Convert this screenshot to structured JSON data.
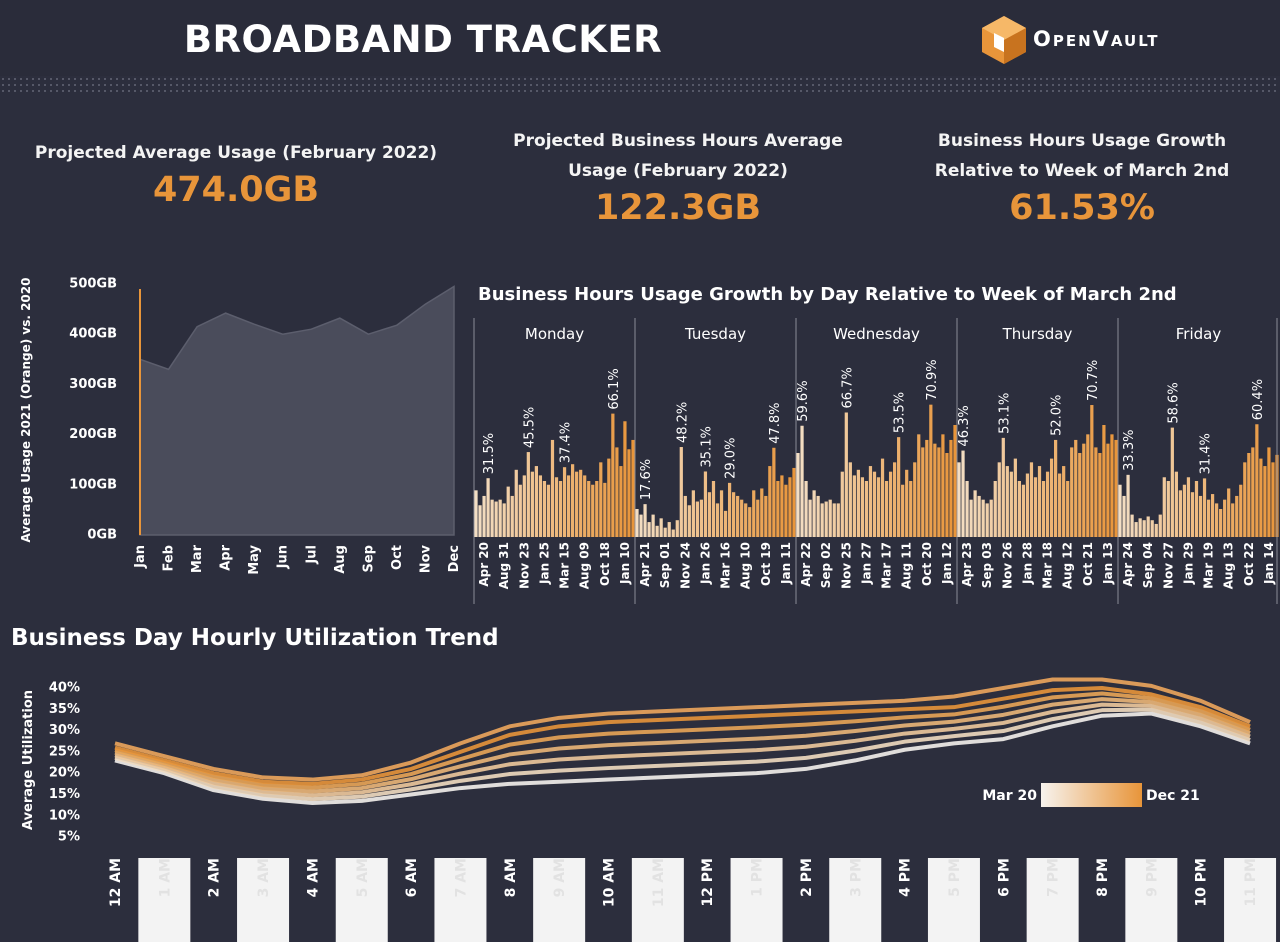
{
  "header": {
    "title": "BROADBAND TRACKER",
    "logo": "OpenVault"
  },
  "kpis": [
    {
      "label": "Projected Average Usage (February 2022)",
      "value": "474.0GB"
    },
    {
      "label": "Projected Business Hours Average Usage (February 2022)",
      "value": "122.3GB"
    },
    {
      "label": "Business Hours Usage Growth Relative to Week of March 2nd",
      "value": "61.53%"
    }
  ],
  "chart_data": [
    {
      "type": "area",
      "y_label": "Average Usage 2021 (Orange) vs. 2020",
      "categories": [
        "Jan",
        "Feb",
        "Mar",
        "Apr",
        "May",
        "Jun",
        "Jul",
        "Aug",
        "Sep",
        "Oct",
        "Nov",
        "Dec"
      ],
      "series": [
        {
          "color": "#4a4c5b",
          "values": [
            350,
            330,
            415,
            442,
            420,
            400,
            410,
            432,
            400,
            418,
            460,
            495
          ]
        },
        {
          "color": "#e8953a",
          "values": [
            490,
            null,
            null,
            null,
            null,
            null,
            null,
            null,
            null,
            null,
            null,
            null
          ]
        }
      ],
      "ylim": [
        0,
        500
      ],
      "yticks": [
        {
          "value": 0,
          "label": "0GB"
        },
        {
          "value": 100,
          "label": "100GB"
        },
        {
          "value": 200,
          "label": "200GB"
        },
        {
          "value": 300,
          "label": "300GB"
        },
        {
          "value": 400,
          "label": "400GB"
        },
        {
          "value": 500,
          "label": "500GB"
        }
      ]
    },
    {
      "type": "bar",
      "title": "Business Hours Usage Growth by Day Relative to Week of March 2nd",
      "ylim": [
        0,
        75
      ],
      "color_range": [
        "#f3dec4",
        "#e8953a"
      ],
      "panels": [
        {
          "name": "Monday",
          "categories": [
            null,
            null,
            "Apr 20",
            null,
            null,
            null,
            null,
            "Aug 31",
            null,
            null,
            null,
            null,
            "Nov 23",
            null,
            null,
            null,
            null,
            "Jan 25",
            null,
            null,
            null,
            null,
            "Mar 15",
            null,
            null,
            null,
            null,
            "Aug 09",
            null,
            null,
            null,
            null,
            "Oct 18",
            null,
            null,
            null,
            null,
            "Jan 10",
            null,
            null
          ],
          "values": [
            25,
            17,
            22,
            31.5,
            20,
            19,
            20,
            18,
            27,
            22,
            36,
            28,
            33,
            45.5,
            35,
            38,
            33,
            30,
            28,
            52,
            32,
            30,
            37.4,
            33,
            39,
            35,
            36,
            33,
            30,
            28,
            30,
            40,
            29,
            42,
            66.1,
            48,
            38,
            62,
            47,
            52
          ],
          "value_labels": [
            null,
            null,
            null,
            "31.5%",
            null,
            null,
            null,
            null,
            null,
            null,
            null,
            null,
            null,
            "45.5%",
            null,
            null,
            null,
            null,
            null,
            null,
            null,
            null,
            "37.4%",
            null,
            null,
            null,
            null,
            null,
            null,
            null,
            null,
            null,
            null,
            null,
            "66.1%",
            null,
            null,
            null,
            null,
            null
          ]
        },
        {
          "name": "Tuesday",
          "categories": [
            null,
            null,
            "Apr 21",
            null,
            null,
            null,
            null,
            "Sep 01",
            null,
            null,
            null,
            null,
            "Nov 24",
            null,
            null,
            null,
            null,
            "Jan 26",
            null,
            null,
            null,
            null,
            "Mar 16",
            null,
            null,
            null,
            null,
            "Aug 10",
            null,
            null,
            null,
            null,
            "Oct 19",
            null,
            null,
            null,
            null,
            "Jan 11",
            null,
            null
          ],
          "values": [
            15,
            12,
            17.6,
            8,
            12,
            6,
            10,
            5,
            8,
            4,
            9,
            48.2,
            22,
            17,
            25,
            19,
            20,
            35.1,
            24,
            30,
            18,
            25,
            14,
            29.0,
            24,
            22,
            20,
            18,
            16,
            25,
            20,
            26,
            22,
            38,
            47.8,
            30,
            33,
            28,
            32,
            37
          ],
          "value_labels": [
            null,
            null,
            "17.6%",
            null,
            null,
            null,
            null,
            null,
            null,
            null,
            null,
            "48.2%",
            null,
            null,
            null,
            null,
            null,
            "35.1%",
            null,
            null,
            null,
            null,
            null,
            "29.0%",
            null,
            null,
            null,
            null,
            null,
            null,
            null,
            null,
            null,
            null,
            "47.8%",
            null,
            null,
            null,
            null,
            null
          ]
        },
        {
          "name": "Wednesday",
          "categories": [
            null,
            null,
            "Apr 22",
            null,
            null,
            null,
            null,
            "Sep 02",
            null,
            null,
            null,
            null,
            "Nov 25",
            null,
            null,
            null,
            null,
            "Jan 27",
            null,
            null,
            null,
            null,
            "Mar 17",
            null,
            null,
            null,
            null,
            "Aug 11",
            null,
            null,
            null,
            null,
            "Oct 20",
            null,
            null,
            null,
            null,
            "Jan 12",
            null,
            null
          ],
          "values": [
            45,
            59.6,
            30,
            20,
            25,
            22,
            18,
            19,
            20,
            18,
            18,
            35,
            66.7,
            40,
            33,
            36,
            32,
            30,
            38,
            35,
            32,
            42,
            30,
            35,
            40,
            53.5,
            28,
            36,
            30,
            40,
            55,
            48,
            52,
            70.9,
            50,
            48,
            55,
            45,
            52,
            60
          ],
          "value_labels": [
            null,
            "59.6%",
            null,
            null,
            null,
            null,
            null,
            null,
            null,
            null,
            null,
            null,
            "66.7%",
            null,
            null,
            null,
            null,
            null,
            null,
            null,
            null,
            null,
            null,
            null,
            null,
            "53.5%",
            null,
            null,
            null,
            null,
            null,
            null,
            null,
            "70.9%",
            null,
            null,
            null,
            null,
            null,
            null
          ]
        },
        {
          "name": "Thursday",
          "categories": [
            null,
            null,
            "Apr 23",
            null,
            null,
            null,
            null,
            "Sep 03",
            null,
            null,
            null,
            null,
            "Nov 26",
            null,
            null,
            null,
            null,
            "Jan 28",
            null,
            null,
            null,
            null,
            "Mar 18",
            null,
            null,
            null,
            null,
            "Aug 12",
            null,
            null,
            null,
            null,
            "Oct 21",
            null,
            null,
            null,
            null,
            "Jan 13",
            null,
            null
          ],
          "values": [
            40,
            46.3,
            30,
            20,
            25,
            22,
            20,
            18,
            20,
            30,
            40,
            53.1,
            38,
            35,
            42,
            30,
            28,
            34,
            40,
            32,
            38,
            30,
            35,
            42,
            52.0,
            34,
            38,
            30,
            48,
            52,
            45,
            50,
            55,
            70.7,
            48,
            45,
            60,
            50,
            55,
            52
          ],
          "value_labels": [
            null,
            "46.3%",
            null,
            null,
            null,
            null,
            null,
            null,
            null,
            null,
            null,
            "53.1%",
            null,
            null,
            null,
            null,
            null,
            null,
            null,
            null,
            null,
            null,
            null,
            null,
            "52.0%",
            null,
            null,
            null,
            null,
            null,
            null,
            null,
            null,
            "70.7%",
            null,
            null,
            null,
            null,
            null,
            null
          ]
        },
        {
          "name": "Friday",
          "categories": [
            null,
            null,
            "Apr 24",
            null,
            null,
            null,
            null,
            "Sep 04",
            null,
            null,
            null,
            null,
            "Nov 27",
            null,
            null,
            null,
            null,
            "Jan 29",
            null,
            null,
            null,
            null,
            "Mar 19",
            null,
            null,
            null,
            null,
            "Aug 13",
            null,
            null,
            null,
            null,
            "Oct 22",
            null,
            null,
            null,
            null,
            "Jan 14",
            null,
            null
          ],
          "values": [
            28,
            22,
            33.3,
            12,
            8,
            10,
            9,
            11,
            9,
            7,
            12,
            32,
            30,
            58.6,
            35,
            25,
            28,
            32,
            24,
            30,
            22,
            31.4,
            20,
            23,
            18,
            15,
            20,
            26,
            18,
            22,
            28,
            40,
            45,
            48,
            60.4,
            42,
            38,
            48,
            40,
            44
          ],
          "value_labels": [
            null,
            null,
            "33.3%",
            null,
            null,
            null,
            null,
            null,
            null,
            null,
            null,
            null,
            null,
            "58.6%",
            null,
            null,
            null,
            null,
            null,
            null,
            null,
            "31.4%",
            null,
            null,
            null,
            null,
            null,
            null,
            null,
            null,
            null,
            null,
            null,
            null,
            "60.4%",
            null,
            null,
            null,
            null,
            null
          ]
        }
      ]
    },
    {
      "type": "line",
      "title": "Business Day Hourly Utilization Trend",
      "y_label": "Average Utilization",
      "categories": [
        "12 AM",
        "1 AM",
        "2 AM",
        "3 AM",
        "4 AM",
        "5 AM",
        "6 AM",
        "7 AM",
        "8 AM",
        "9 AM",
        "10 AM",
        "11 AM",
        "12 PM",
        "1 PM",
        "2 PM",
        "3 PM",
        "4 PM",
        "5 PM",
        "6 PM",
        "7 PM",
        "8 PM",
        "9 PM",
        "10 PM",
        "11 PM"
      ],
      "ylim": [
        4,
        42
      ],
      "yticks": [
        {
          "value": 5,
          "label": "5%"
        },
        {
          "value": 10,
          "label": "10%"
        },
        {
          "value": 15,
          "label": "15%"
        },
        {
          "value": 20,
          "label": "20%"
        },
        {
          "value": 25,
          "label": "25%"
        },
        {
          "value": 30,
          "label": "30%"
        },
        {
          "value": 35,
          "label": "35%"
        },
        {
          "value": 40,
          "label": "40%"
        }
      ],
      "legend": {
        "from": "Mar 20",
        "to": "Dec 21",
        "colors": [
          "#f7f3ee",
          "#e8953a"
        ]
      },
      "series": [
        {
          "color": "#eda65c",
          "values": [
            27,
            24,
            21,
            19,
            18.5,
            19.5,
            22.5,
            27,
            31,
            33,
            34,
            34.5,
            35,
            35.5,
            36,
            36.5,
            37,
            38,
            40,
            42,
            42,
            40.5,
            37,
            32
          ]
        },
        {
          "color": "#e8953a",
          "values": [
            26,
            23,
            20,
            18,
            17.5,
            18.5,
            21,
            25,
            29,
            31,
            32,
            32.5,
            33,
            33.5,
            34,
            34.5,
            35,
            35.5,
            37.5,
            39.5,
            40,
            38.5,
            35.5,
            31
          ]
        },
        {
          "color": "#e9a557",
          "values": [
            25.4,
            22.4,
            19.2,
            17.2,
            16.6,
            17.5,
            19.8,
            23.3,
            26.7,
            28.4,
            29.3,
            29.8,
            30.3,
            30.8,
            31.4,
            32.2,
            33.1,
            33.8,
            35.6,
            37.8,
            38.7,
            37.6,
            34.6,
            30.2
          ]
        },
        {
          "color": "#ebb678",
          "values": [
            24.8,
            21.8,
            18.4,
            16.4,
            15.7,
            16.5,
            18.6,
            21.6,
            24.4,
            25.8,
            26.6,
            27.1,
            27.6,
            28.1,
            28.8,
            29.9,
            31.2,
            32.1,
            33.7,
            36.1,
            37.4,
            36.7,
            33.7,
            29.4
          ]
        },
        {
          "color": "#eec99c",
          "values": [
            24.2,
            21.2,
            17.6,
            15.6,
            14.8,
            15.5,
            17.4,
            19.9,
            22.1,
            23.2,
            23.9,
            24.4,
            24.9,
            25.4,
            26.2,
            27.6,
            29.3,
            30.4,
            31.8,
            34.4,
            36.1,
            35.8,
            32.8,
            28.6
          ]
        },
        {
          "color": "#f1dcc0",
          "values": [
            23.6,
            20.6,
            16.8,
            14.8,
            13.9,
            14.5,
            16.2,
            18.2,
            19.8,
            20.6,
            21.2,
            21.7,
            22.2,
            22.7,
            23.6,
            25.3,
            27.4,
            28.7,
            29.9,
            32.7,
            34.8,
            34.9,
            31.9,
            27.8
          ]
        },
        {
          "color": "#f4f1ec",
          "values": [
            23,
            20,
            16,
            14,
            13,
            13.5,
            15,
            16.5,
            17.5,
            18,
            18.5,
            19,
            19.5,
            20,
            21,
            23,
            25.5,
            27,
            28,
            31,
            33.5,
            34,
            31,
            27
          ]
        }
      ]
    }
  ]
}
